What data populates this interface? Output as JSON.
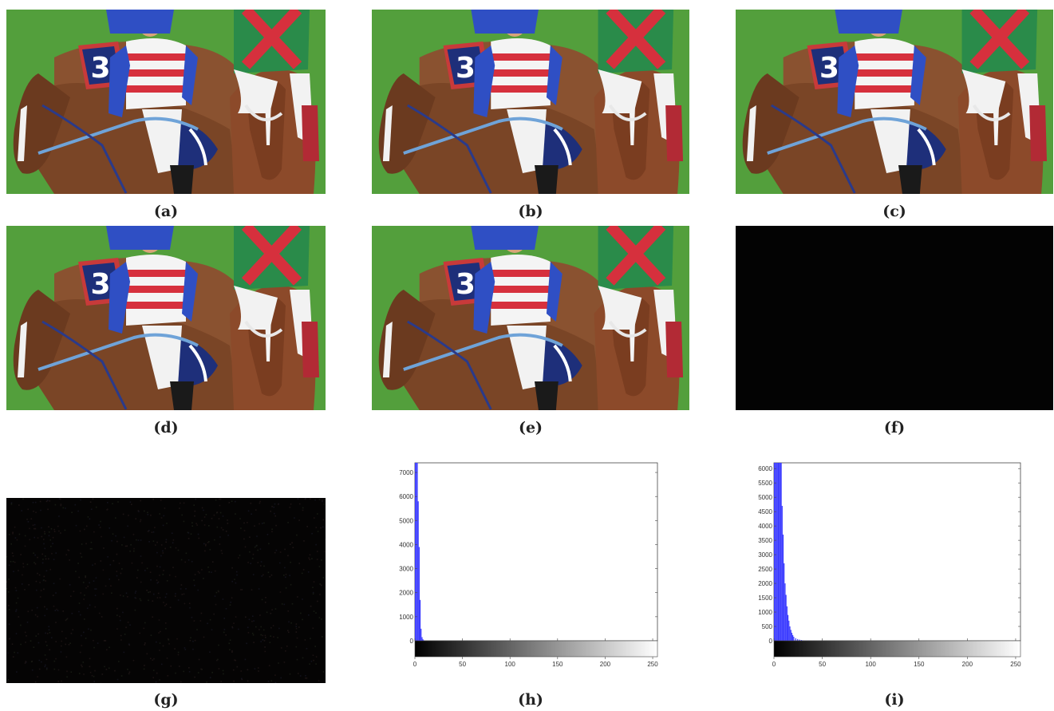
{
  "figure": {
    "panels": [
      {
        "id": "a",
        "label": "(a)",
        "kind": "photo",
        "variant": "normal"
      },
      {
        "id": "b",
        "label": "(b)",
        "kind": "photo",
        "variant": "normal"
      },
      {
        "id": "c",
        "label": "(c)",
        "kind": "photo",
        "variant": "normal"
      },
      {
        "id": "d",
        "label": "(d)",
        "kind": "photo",
        "variant": "normal"
      },
      {
        "id": "e",
        "label": "(e)",
        "kind": "photo",
        "variant": "normal"
      },
      {
        "id": "f",
        "label": "(f)",
        "kind": "difference",
        "variant": "black"
      },
      {
        "id": "g",
        "label": "(g)",
        "kind": "difference",
        "variant": "dark-noise"
      },
      {
        "id": "h",
        "label": "(h)",
        "kind": "histogram"
      },
      {
        "id": "i",
        "label": "(i)",
        "kind": "histogram"
      }
    ],
    "scene_colors": {
      "grass": "#4f9a3a",
      "horse": "#7a4526",
      "blue_silks": "#2f4fc4",
      "red_stripes": "#d6303d",
      "green_silks": "#2a8b4a",
      "saddle_cloth": "#1e2f7a"
    },
    "number_cloth": "3"
  },
  "chart_data": [
    {
      "type": "bar",
      "panel": "h",
      "x_ticks": [
        0,
        50,
        100,
        150,
        200,
        250
      ],
      "y_ticks": [
        0,
        1000,
        2000,
        3000,
        4000,
        5000,
        6000,
        7000
      ],
      "xlim": [
        0,
        255
      ],
      "ylim": [
        0,
        7400
      ],
      "bins": [
        0,
        1,
        2,
        3,
        4,
        5,
        6,
        7,
        8,
        9,
        10
      ],
      "values": [
        7400,
        7400,
        7400,
        5800,
        3900,
        1700,
        500,
        150,
        60,
        20,
        5
      ],
      "bar_color": "#3a3aff",
      "colorbar": "grayscale"
    },
    {
      "type": "bar",
      "panel": "i",
      "x_ticks": [
        0,
        50,
        100,
        150,
        200,
        250
      ],
      "y_ticks": [
        0,
        500,
        1000,
        1500,
        2000,
        2500,
        3000,
        3500,
        4000,
        4500,
        5000,
        5500,
        6000
      ],
      "xlim": [
        0,
        255
      ],
      "ylim": [
        0,
        6200
      ],
      "bins": [
        0,
        1,
        2,
        3,
        4,
        5,
        6,
        7,
        8,
        9,
        10,
        11,
        12,
        13,
        14,
        15,
        16,
        17,
        18,
        19,
        20,
        22,
        24,
        26,
        28,
        30,
        33,
        36,
        40,
        45,
        50
      ],
      "values": [
        6200,
        6200,
        6200,
        6200,
        6200,
        6200,
        6200,
        6200,
        4700,
        3700,
        2700,
        2000,
        1600,
        1200,
        900,
        700,
        500,
        380,
        280,
        200,
        140,
        90,
        60,
        40,
        25,
        15,
        10,
        8,
        5,
        3,
        2
      ],
      "bar_color": "#3a3aff",
      "colorbar": "grayscale"
    }
  ]
}
